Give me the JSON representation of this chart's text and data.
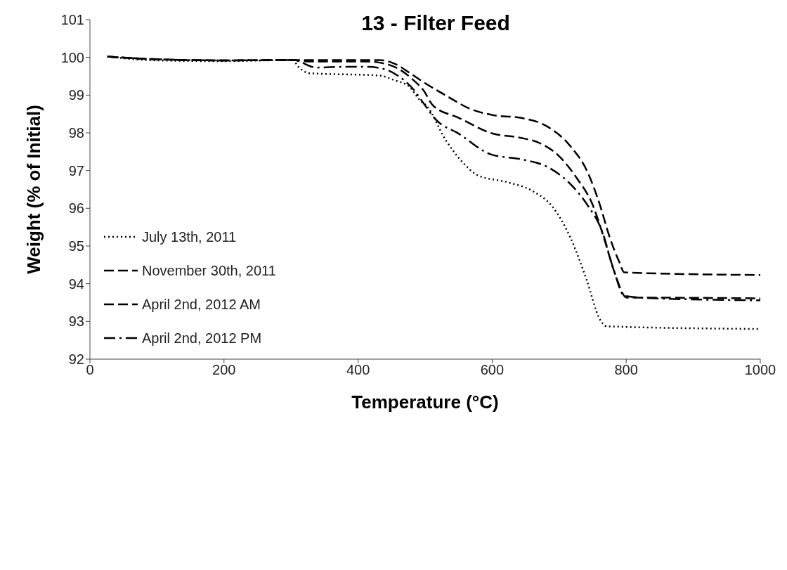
{
  "chart_data": {
    "type": "line",
    "title": "13 - Filter Feed",
    "xlabel": "Temperature (°C)",
    "ylabel": "Weight (% of Initial)",
    "xlim": [
      0,
      1000
    ],
    "xticks": [
      0,
      200,
      400,
      600,
      800,
      1000
    ],
    "ylim": [
      92,
      101
    ],
    "yticks": [
      92,
      93,
      94,
      95,
      96,
      97,
      98,
      99,
      100,
      101
    ],
    "grid": false,
    "legend": "bottom left",
    "marker": "none",
    "series": [
      {
        "name": "July 13th, 2011",
        "color": "#000000",
        "line_style": "dotted",
        "x": [
          26,
          100,
          200,
          303,
          310,
          328,
          431,
          455,
          476,
          493,
          502,
          531,
          557,
          579,
          623,
          660,
          690,
          716,
          741,
          760,
          771,
          1000
        ],
        "values": [
          100.02,
          99.92,
          99.9,
          99.93,
          99.77,
          99.58,
          99.52,
          99.39,
          99.23,
          98.85,
          98.72,
          97.8,
          97.2,
          96.87,
          96.69,
          96.46,
          96.04,
          95.25,
          94.1,
          93.08,
          92.87,
          92.8
        ]
      },
      {
        "name": "November 30th, 2011",
        "color": "#000000",
        "line_style": "dashed",
        "x": [
          26,
          100,
          200,
          303,
          328,
          362,
          414,
          445,
          462,
          483,
          497,
          512,
          550,
          601,
          642,
          668,
          697,
          727,
          749,
          767,
          782,
          801,
          845,
          1000
        ],
        "values": [
          100.02,
          99.95,
          99.92,
          99.93,
          99.89,
          99.89,
          99.89,
          99.81,
          99.68,
          99.39,
          99.14,
          98.72,
          98.4,
          97.98,
          97.87,
          97.75,
          97.43,
          96.78,
          96.13,
          95.2,
          94.33,
          93.63,
          93.63,
          93.61
        ]
      },
      {
        "name": "April 2nd, 2012 AM",
        "color": "#000000",
        "line_style": "dashed",
        "x": [
          26,
          100,
          200,
          303,
          362,
          431,
          455,
          476,
          497,
          530,
          568,
          601,
          642,
          682,
          716,
          742,
          760,
          775,
          790,
          797,
          1000
        ],
        "values": [
          100.02,
          99.95,
          99.92,
          99.93,
          99.93,
          99.93,
          99.83,
          99.6,
          99.35,
          99.0,
          98.63,
          98.47,
          98.4,
          98.17,
          97.66,
          96.97,
          96.13,
          95.25,
          94.56,
          94.3,
          94.23
        ]
      },
      {
        "name": "April 2nd, 2012 PM",
        "color": "#000000",
        "line_style": "dashdot",
        "x": [
          26,
          100,
          200,
          303,
          338,
          379,
          414,
          441,
          459,
          483,
          495,
          516,
          550,
          598,
          646,
          682,
          719,
          742,
          764,
          782,
          797,
          845,
          1000
        ],
        "values": [
          100.02,
          99.95,
          99.92,
          99.93,
          99.73,
          99.75,
          99.75,
          99.68,
          99.52,
          99.14,
          98.85,
          98.35,
          97.98,
          97.43,
          97.29,
          97.1,
          96.6,
          96.09,
          95.39,
          94.33,
          93.68,
          93.61,
          93.56
        ]
      }
    ]
  }
}
